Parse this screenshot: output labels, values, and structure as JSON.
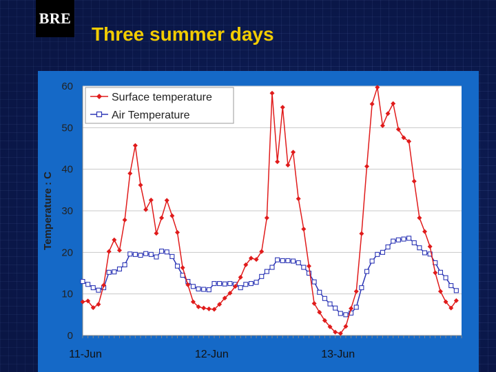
{
  "header": {
    "logo_text": "BRE",
    "title": "Three summer days"
  },
  "colors": {
    "title": "#f2cc00",
    "frame": "#1569c7",
    "surface_series": "#e01b1b",
    "air_series": "#2b35b5"
  },
  "chart_data": {
    "type": "line",
    "ylabel": "Temperature : C",
    "xlabel": "",
    "ylim": [
      0,
      60
    ],
    "yticks": [
      0,
      10,
      20,
      30,
      40,
      50,
      60
    ],
    "x_tick_labels": [
      "11-Jun",
      "12-Jun",
      "13-Jun"
    ],
    "x_tick_positions": [
      0,
      24,
      48
    ],
    "xlim": [
      0,
      72
    ],
    "legend_position": "top-left",
    "grid": true,
    "series": [
      {
        "name": "Surface temperature",
        "marker": "diamond",
        "values": [
          8.1,
          8.3,
          6.7,
          7.5,
          12.1,
          20.2,
          23.0,
          20.5,
          27.8,
          39.0,
          45.7,
          36.2,
          30.3,
          32.6,
          24.6,
          28.3,
          32.5,
          28.8,
          24.8,
          16.3,
          12.2,
          8.1,
          6.9,
          6.6,
          6.4,
          6.3,
          7.5,
          9.0,
          10.2,
          11.8,
          14.0,
          17.0,
          18.6,
          18.3,
          20.2,
          28.3,
          58.3,
          41.8,
          54.9,
          41.0,
          44.1,
          32.9,
          25.6,
          16.7,
          7.7,
          5.6,
          3.6,
          2.1,
          0.8,
          0.5,
          2.2,
          6.5,
          10.6,
          24.5,
          40.7,
          55.7,
          59.7,
          50.5,
          53.4,
          55.8,
          49.6,
          47.6,
          46.7,
          37.1,
          28.3,
          25.0,
          21.4,
          15.1,
          10.6,
          8.1,
          6.6,
          8.4
        ]
      },
      {
        "name": "Air Temperature",
        "marker": "square",
        "values": [
          13.0,
          12.3,
          11.5,
          10.9,
          11.5,
          15.2,
          15.3,
          16.0,
          17.0,
          19.6,
          19.5,
          19.3,
          19.7,
          19.5,
          18.9,
          20.3,
          20.1,
          19.0,
          16.7,
          14.5,
          13.0,
          11.8,
          11.2,
          11.1,
          11.0,
          12.5,
          12.5,
          12.4,
          12.5,
          12.3,
          11.5,
          12.3,
          12.5,
          12.8,
          14.2,
          15.4,
          16.4,
          18.2,
          18.0,
          18.0,
          17.9,
          17.5,
          16.4,
          15.0,
          12.9,
          10.4,
          8.9,
          7.6,
          6.6,
          5.3,
          5.0,
          5.4,
          6.8,
          11.5,
          15.4,
          17.9,
          19.5,
          20.0,
          21.3,
          22.7,
          23.0,
          23.2,
          23.4,
          22.3,
          21.1,
          19.9,
          19.6,
          17.5,
          15.2,
          13.9,
          12.0,
          10.8
        ]
      }
    ]
  }
}
